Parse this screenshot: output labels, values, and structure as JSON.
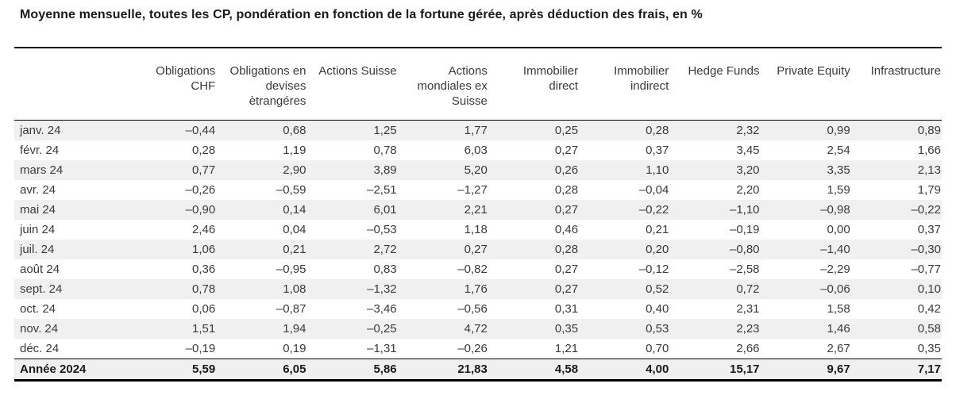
{
  "title": "Moyenne mensuelle, toutes les CP, pondération en fonction de la fortune gérée, après déduction des frais, en %",
  "table": {
    "columns": [
      "Obligations CHF",
      "Obligations en devises ètrangéres",
      "Actions Suisse",
      "Actions mondiales ex Suisse",
      "Immobilier direct",
      "Immobilier indirect",
      "Hedge Funds",
      "Private Equity",
      "Infrastructure"
    ],
    "rows": [
      {
        "label": "janv. 24",
        "values": [
          "–0,44",
          "0,68",
          "1,25",
          "1,77",
          "0,25",
          "0,28",
          "2,32",
          "0,99",
          "0,89"
        ]
      },
      {
        "label": "févr. 24",
        "values": [
          "0,28",
          "1,19",
          "0,78",
          "6,03",
          "0,27",
          "0,37",
          "3,45",
          "2,54",
          "1,66"
        ]
      },
      {
        "label": "mars 24",
        "values": [
          "0,77",
          "2,90",
          "3,89",
          "5,20",
          "0,26",
          "1,10",
          "3,20",
          "3,35",
          "2,13"
        ]
      },
      {
        "label": "avr. 24",
        "values": [
          "–0,26",
          "–0,59",
          "–2,51",
          "–1,27",
          "0,28",
          "–0,04",
          "2,20",
          "1,59",
          "1,79"
        ]
      },
      {
        "label": "mai 24",
        "values": [
          "–0,90",
          "0,14",
          "6,01",
          "2,21",
          "0,27",
          "–0,22",
          "–1,10",
          "–0,98",
          "–0,22"
        ]
      },
      {
        "label": "juin 24",
        "values": [
          "2,46",
          "0,04",
          "–0,53",
          "1,18",
          "0,46",
          "0,21",
          "–0,19",
          "0,00",
          "0,37"
        ]
      },
      {
        "label": "juil. 24",
        "values": [
          "1,06",
          "0,21",
          "2,72",
          "0,27",
          "0,28",
          "0,20",
          "–0,80",
          "–1,40",
          "–0,30"
        ]
      },
      {
        "label": "août 24",
        "values": [
          "0,36",
          "–0,95",
          "0,83",
          "–0,82",
          "0,27",
          "–0,12",
          "–2,58",
          "–2,29",
          "–0,77"
        ]
      },
      {
        "label": "sept. 24",
        "values": [
          "0,78",
          "1,08",
          "–1,32",
          "1,76",
          "0,27",
          "0,52",
          "0,72",
          "–0,06",
          "0,10"
        ]
      },
      {
        "label": "oct. 24",
        "values": [
          "0,06",
          "–0,87",
          "–3,46",
          "–0,56",
          "0,31",
          "0,40",
          "2,31",
          "1,58",
          "0,42"
        ]
      },
      {
        "label": "nov. 24",
        "values": [
          "1,51",
          "1,94",
          "–0,25",
          "4,72",
          "0,35",
          "0,53",
          "2,23",
          "1,46",
          "0,58"
        ]
      },
      {
        "label": "déc. 24",
        "values": [
          "–0,19",
          "0,19",
          "–1,31",
          "–0,26",
          "1,21",
          "0,70",
          "2,66",
          "2,67",
          "0,35"
        ]
      }
    ],
    "total_row": {
      "label": "Année 2024",
      "values": [
        "5,59",
        "6,05",
        "5,86",
        "21,83",
        "4,58",
        "4,00",
        "15,17",
        "9,67",
        "7,17"
      ]
    }
  },
  "colors": {
    "stripe": "#f0f0f0",
    "rule": "#000000",
    "text": "#3a3a3a",
    "title": "#1a1a1a"
  }
}
